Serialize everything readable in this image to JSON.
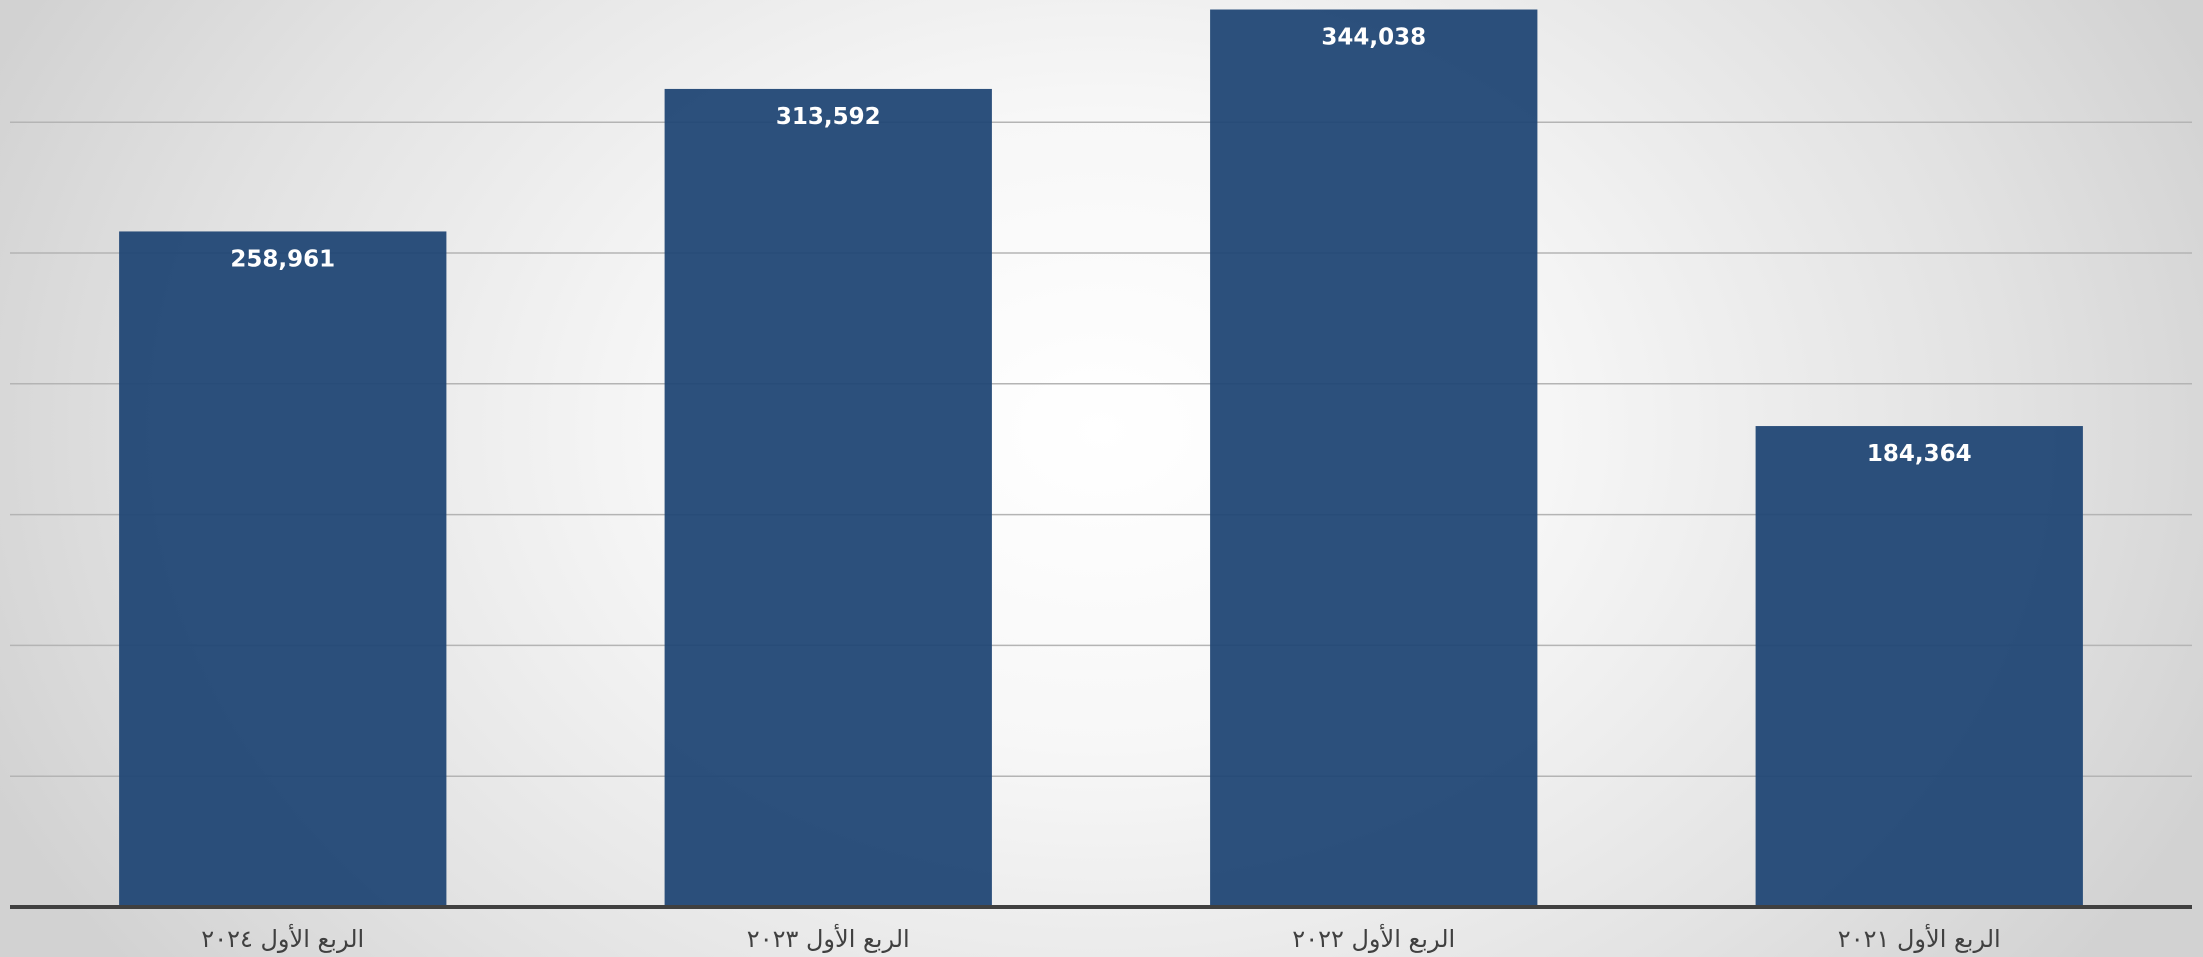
{
  "chart_data": {
    "type": "bar",
    "categories": [
      "الربع الأول ٢٠٢٤",
      "الربع الأول ٢٠٢٣",
      "الربع الأول ٢٠٢٢",
      "الربع الأول ٢٠٢١"
    ],
    "values": [
      258961,
      313592,
      344038,
      184364
    ],
    "value_labels": [
      "258,961",
      "313,592",
      "344,038",
      "184,364"
    ],
    "ylim": [
      0,
      345000
    ],
    "grid": true,
    "legend": "none",
    "colors": {
      "bar": "#1f4574",
      "value_label": "#ffffff",
      "axis": "#404040",
      "grid": "#b4b4b4"
    }
  }
}
